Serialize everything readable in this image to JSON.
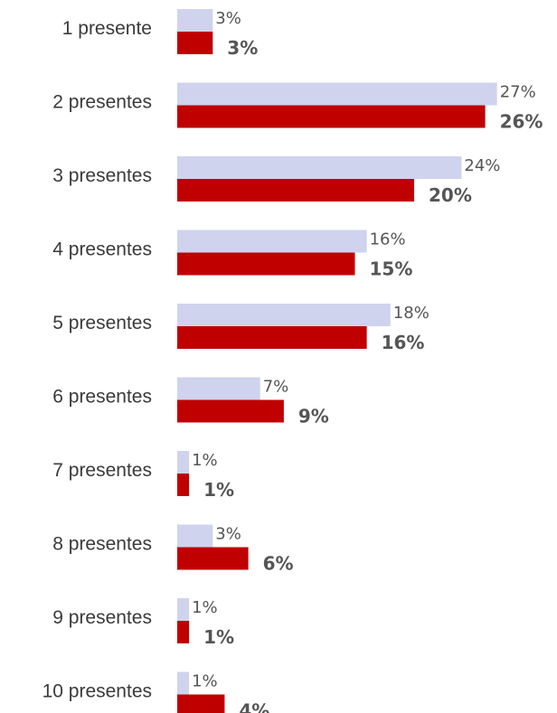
{
  "chart_data": {
    "type": "bar",
    "orientation": "horizontal",
    "categories": [
      "1 presente",
      "2 presentes",
      "3 presentes",
      "4 presentes",
      "5 presentes",
      "6 presentes",
      "7 presentes",
      "8 presentes",
      "9 presentes",
      "10 presentes"
    ],
    "series": [
      {
        "values": [
          3,
          27,
          24,
          16,
          18,
          7,
          1,
          3,
          1,
          1
        ],
        "color": "#cfd3ee",
        "label_style": "regular"
      },
      {
        "values": [
          3,
          26,
          20,
          15,
          16,
          9,
          1,
          6,
          1,
          4
        ],
        "color": "#c00000",
        "label_style": "bold"
      }
    ],
    "value_format": "{v}%",
    "xlim": [
      0,
      27
    ],
    "grid": false,
    "legend": "none"
  }
}
